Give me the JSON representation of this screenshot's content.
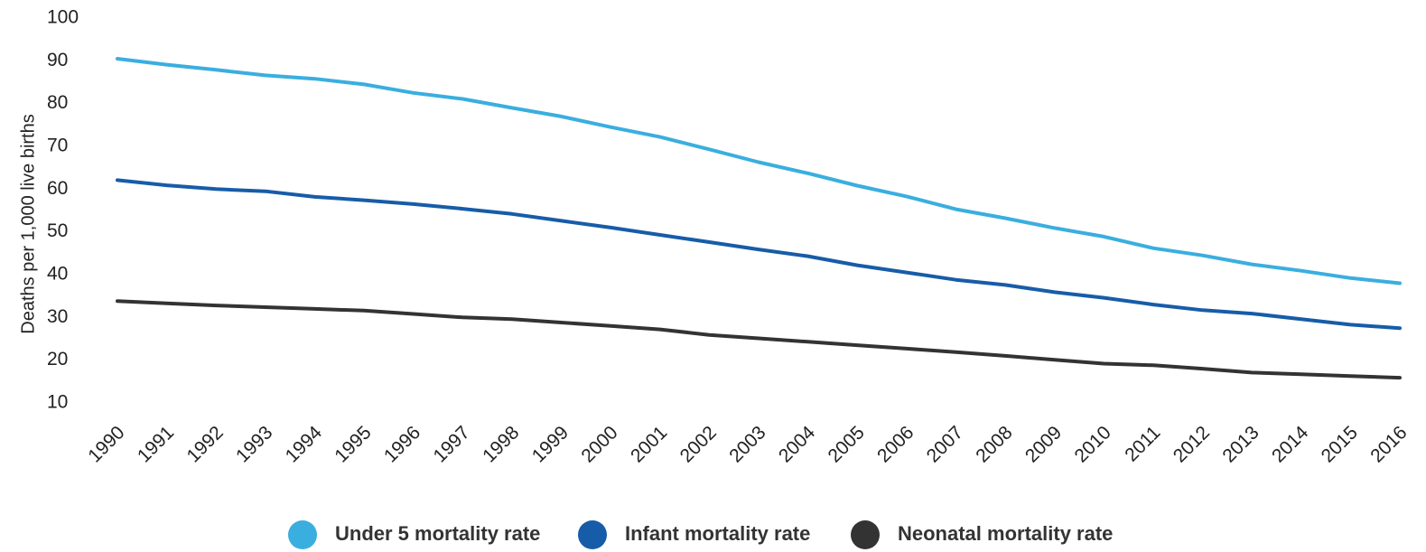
{
  "chart_data": {
    "type": "line",
    "title": "",
    "xlabel": "",
    "ylabel": "Deaths per 1,000 live births",
    "ylim": [
      10,
      100
    ],
    "yticks": [
      "100",
      "90",
      "80",
      "70",
      "60",
      "50",
      "40",
      "30",
      "20",
      "10"
    ],
    "x": [
      "1990",
      "1991",
      "1992",
      "1993",
      "1994",
      "1995",
      "1996",
      "1997",
      "1998",
      "1999",
      "2000",
      "2001",
      "2002",
      "2003",
      "2004",
      "2005",
      "2006",
      "2007",
      "2008",
      "2009",
      "2010",
      "2011",
      "2012",
      "2013",
      "2014",
      "2015",
      "2016"
    ],
    "grid": false,
    "legend_position": "bottom",
    "series": [
      {
        "name": "Under 5 mortality rate",
        "color": "#3aaedf",
        "values": [
          90.5,
          89.1,
          87.9,
          86.6,
          85.8,
          84.5,
          82.5,
          81.1,
          79.0,
          77.0,
          74.5,
          72.2,
          69.3,
          66.3,
          63.7,
          60.8,
          58.3,
          55.3,
          53.2,
          50.9,
          48.9,
          46.2,
          44.5,
          42.4,
          40.9,
          39.2,
          38.0
        ]
      },
      {
        "name": "Infant mortality rate",
        "color": "#175ca8",
        "values": [
          62.1,
          60.9,
          60.0,
          59.5,
          58.2,
          57.4,
          56.5,
          55.4,
          54.2,
          52.6,
          51.0,
          49.3,
          47.6,
          45.9,
          44.3,
          42.2,
          40.5,
          38.8,
          37.6,
          35.9,
          34.6,
          33.0,
          31.7,
          30.9,
          29.6,
          28.3,
          27.5
        ]
      },
      {
        "name": "Neonatal mortality rate",
        "color": "#333333",
        "values": [
          33.8,
          33.3,
          32.8,
          32.4,
          32.0,
          31.6,
          30.8,
          30.0,
          29.6,
          28.8,
          28.0,
          27.2,
          25.9,
          25.1,
          24.3,
          23.5,
          22.7,
          21.9,
          21.0,
          20.1,
          19.2,
          18.8,
          18.0,
          17.1,
          16.7,
          16.3,
          15.9
        ]
      }
    ]
  }
}
